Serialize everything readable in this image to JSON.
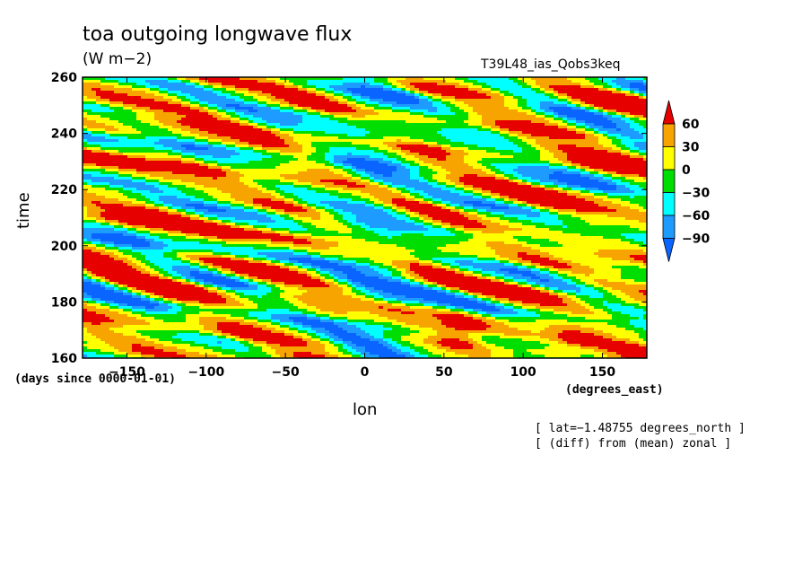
{
  "chart_data": {
    "type": "heatmap",
    "title": "toa outgoing longwave flux",
    "units": "(W m−2)",
    "run_label": "T39L48_ias_Qobs3keq",
    "xlabel": "lon",
    "ylabel": "time",
    "x_units": "(degrees_east)",
    "y_units": "(days since 0000-01-01)",
    "xlim": [
      -178,
      178
    ],
    "ylim": [
      160,
      260
    ],
    "x_ticks": [
      -150,
      -100,
      -50,
      0,
      50,
      100,
      150
    ],
    "y_ticks": [
      160,
      180,
      200,
      220,
      240,
      260
    ],
    "contour_levels": [
      -90,
      -60,
      -30,
      0,
      30,
      60
    ],
    "colorbar": {
      "labels": [
        "60",
        "30",
        "0",
        "−30",
        "−60",
        "−90"
      ],
      "colors": [
        "#e60000",
        "#f7a400",
        "#ffff00",
        "#00dd00",
        "#00ffff",
        "#1e9bff",
        "#0a64ff"
      ]
    },
    "annotations": [
      "[ lat=−1.48755 degrees_north ]",
      "[ (diff) from (mean) zonal ]"
    ]
  }
}
